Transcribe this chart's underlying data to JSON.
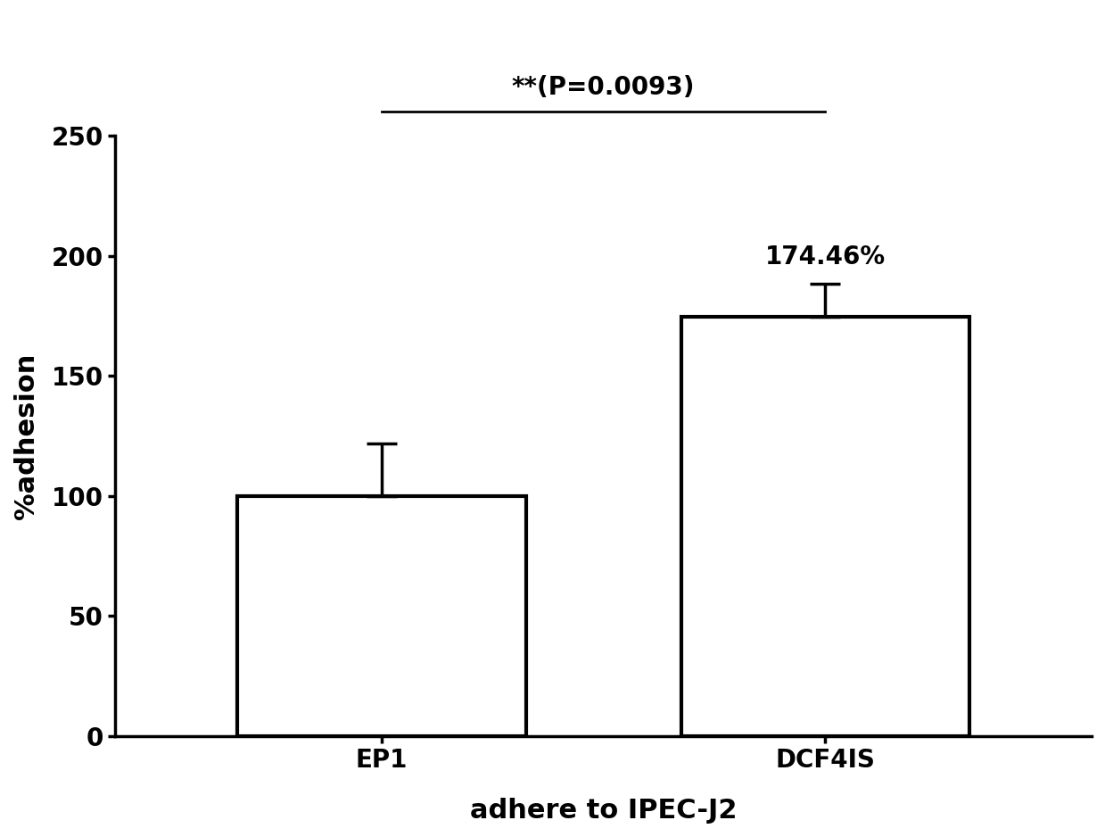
{
  "categories": [
    "EP1",
    "DCF4IS"
  ],
  "values": [
    100.0,
    174.46
  ],
  "errors_up": [
    22.0,
    14.0
  ],
  "errors_down": [
    0.0,
    0.0
  ],
  "bar_color": "white",
  "bar_edgecolor": "black",
  "bar_linewidth": 3.0,
  "ylabel": "%adhesion",
  "xlabel": "adhere to IPEC-J2",
  "ylim": [
    0,
    250
  ],
  "yticks": [
    0,
    50,
    100,
    150,
    200,
    250
  ],
  "annotation_text": "174.46%",
  "sig_text": "**(P=0.0093)",
  "ylabel_fontsize": 22,
  "xlabel_fontsize": 22,
  "tick_fontsize": 20,
  "annotation_fontsize": 20,
  "sig_fontsize": 20,
  "bar_width": 0.65
}
